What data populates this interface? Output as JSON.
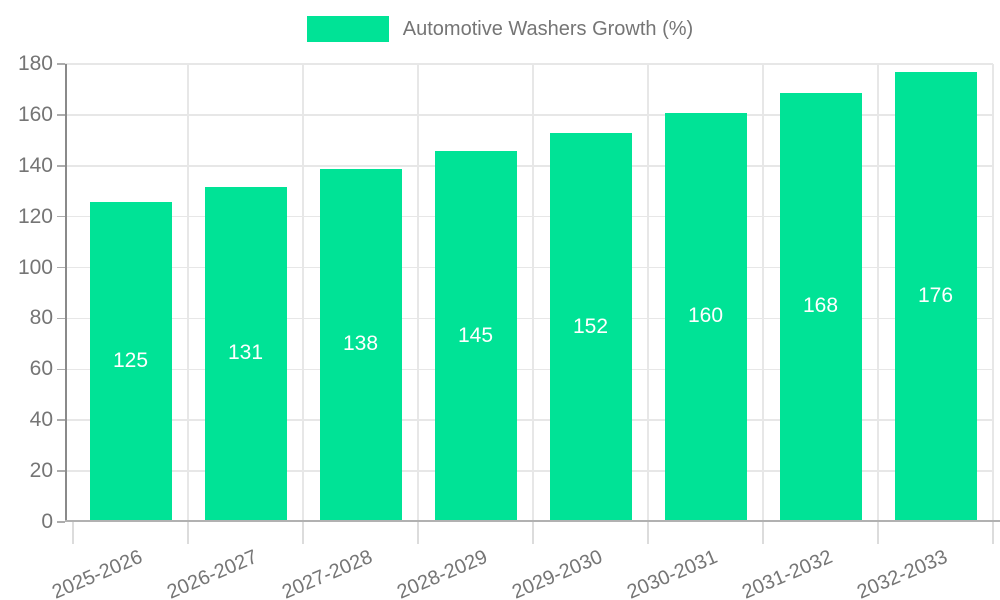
{
  "chart_data": {
    "type": "bar",
    "title": "",
    "xlabel": "",
    "ylabel": "",
    "legend": {
      "position": "top",
      "label": "Automotive Washers Growth (%)"
    },
    "categories": [
      "2025-2026",
      "2026-2027",
      "2027-2028",
      "2028-2029",
      "2029-2030",
      "2030-2031",
      "2031-2032",
      "2032-2033"
    ],
    "series": [
      {
        "name": "Automotive Washers Growth (%)",
        "values": [
          125,
          131,
          138,
          145,
          152,
          160,
          168,
          176
        ]
      }
    ],
    "value_labels": {
      "shown": true,
      "position": "middle",
      "color": "#ffffff"
    },
    "ylim": [
      0,
      180
    ],
    "ytick_step": 20,
    "yticks": [
      0,
      20,
      40,
      60,
      80,
      100,
      120,
      140,
      160,
      180
    ],
    "grid": {
      "horizontal": true,
      "vertical": true
    },
    "x_label_rotation_deg": -23,
    "colors": {
      "bar": "#00e396",
      "grid": "#e7e7e7",
      "y_axis_line": "#8a8a8a",
      "x_axis_line": "#b1b1b1",
      "axis_label": "#757575",
      "value_label": "#ffffff"
    }
  }
}
